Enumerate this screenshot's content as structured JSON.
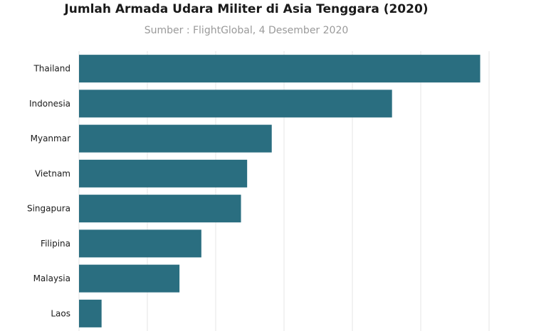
{
  "chart_data": {
    "type": "bar",
    "orientation": "horizontal",
    "title": "Jumlah Armada Udara Militer di Asia Tenggara (2020)",
    "subtitle": "Sumber : FlightGlobal, 4 Desember 2020",
    "categories": [
      "Thailand",
      "Indonesia",
      "Myanmar",
      "Vietnam",
      "Singapura",
      "Filipina",
      "Malaysia",
      "Laos"
    ],
    "values": [
      587,
      458,
      282,
      246,
      237,
      179,
      147,
      33
    ],
    "xlim": [
      0,
      600
    ],
    "grid": true,
    "bar_color": "#2a6e80"
  }
}
